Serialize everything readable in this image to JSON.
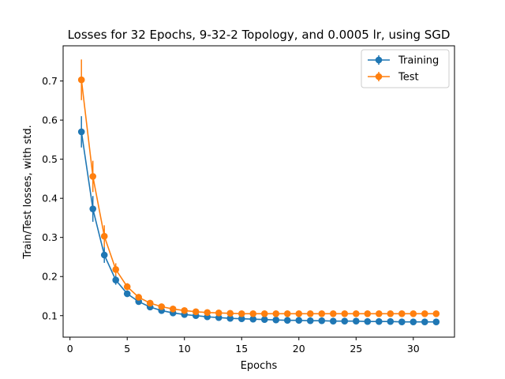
{
  "chart_data": {
    "type": "line",
    "title": "Losses for 32 Epochs, 9-32-2 Topology, and 0.0005 lr, using SGD",
    "xlabel": "Epochs",
    "ylabel": "Train/Test losses, with std.",
    "xlim": [
      -0.6,
      33.6
    ],
    "ylim": [
      0.045,
      0.79
    ],
    "xticks": [
      0,
      5,
      10,
      15,
      20,
      25,
      30
    ],
    "yticks": [
      0.1,
      0.2,
      0.3,
      0.4,
      0.5,
      0.6,
      0.7
    ],
    "ytick_labels": [
      "0.1",
      "0.2",
      "0.3",
      "0.4",
      "0.5",
      "0.6",
      "0.7"
    ],
    "grid": false,
    "legend_position": "top-right",
    "x": [
      1,
      2,
      3,
      4,
      5,
      6,
      7,
      8,
      9,
      10,
      11,
      12,
      13,
      14,
      15,
      16,
      17,
      18,
      19,
      20,
      21,
      22,
      23,
      24,
      25,
      26,
      27,
      28,
      29,
      30,
      31,
      32
    ],
    "series": [
      {
        "name": "Training",
        "color": "#1f77b4",
        "values": [
          0.57,
          0.373,
          0.255,
          0.191,
          0.156,
          0.136,
          0.122,
          0.113,
          0.107,
          0.103,
          0.1,
          0.097,
          0.095,
          0.093,
          0.092,
          0.091,
          0.09,
          0.089,
          0.088,
          0.088,
          0.087,
          0.087,
          0.086,
          0.086,
          0.086,
          0.085,
          0.085,
          0.085,
          0.084,
          0.084,
          0.084,
          0.084
        ],
        "std": [
          0.04,
          0.033,
          0.02,
          0.012,
          0.007,
          0.006,
          0.005,
          0.004,
          0.004,
          0.004,
          0.003,
          0.003,
          0.003,
          0.003,
          0.003,
          0.003,
          0.003,
          0.003,
          0.003,
          0.003,
          0.003,
          0.003,
          0.003,
          0.003,
          0.003,
          0.003,
          0.003,
          0.003,
          0.003,
          0.003,
          0.003,
          0.003
        ]
      },
      {
        "name": "Test",
        "color": "#ff7f0e",
        "values": [
          0.703,
          0.456,
          0.303,
          0.218,
          0.174,
          0.147,
          0.132,
          0.123,
          0.117,
          0.113,
          0.11,
          0.108,
          0.107,
          0.106,
          0.105,
          0.105,
          0.105,
          0.105,
          0.105,
          0.105,
          0.105,
          0.105,
          0.105,
          0.105,
          0.105,
          0.105,
          0.105,
          0.105,
          0.105,
          0.105,
          0.105,
          0.105
        ],
        "std": [
          0.052,
          0.04,
          0.028,
          0.016,
          0.009,
          0.006,
          0.005,
          0.004,
          0.004,
          0.004,
          0.003,
          0.003,
          0.003,
          0.003,
          0.003,
          0.003,
          0.003,
          0.003,
          0.003,
          0.003,
          0.003,
          0.003,
          0.003,
          0.003,
          0.003,
          0.003,
          0.003,
          0.003,
          0.003,
          0.003,
          0.003,
          0.003
        ]
      }
    ]
  }
}
